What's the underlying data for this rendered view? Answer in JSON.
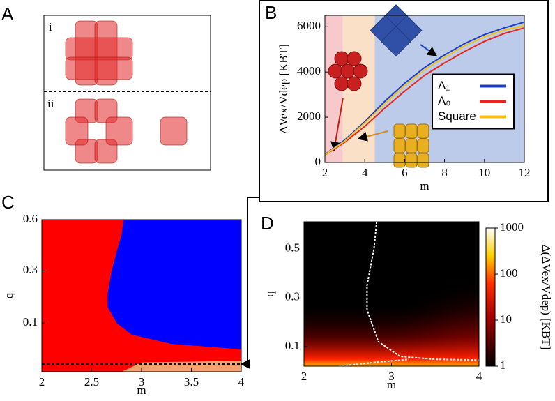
{
  "diagram_a": {
    "label": "A",
    "rows": [
      "i",
      "ii"
    ]
  },
  "chart_data": [
    {
      "type": "line",
      "panel_label": "B",
      "xlabel": "m",
      "ylabel": "ΔVex/Vdep [KBT]",
      "x": [
        2,
        3,
        4,
        5,
        6,
        7,
        8,
        9,
        10,
        11,
        12
      ],
      "series": [
        {
          "name": "Λ₁",
          "color": "#1f3fc8",
          "values": [
            350,
            1000,
            1800,
            2700,
            3500,
            4200,
            4750,
            5250,
            5650,
            5950,
            6200
          ]
        },
        {
          "name": "Λ₀",
          "color": "#e8261c",
          "values": [
            330,
            900,
            1600,
            2400,
            3150,
            3850,
            4400,
            4900,
            5350,
            5700,
            5950
          ]
        },
        {
          "name": "Square",
          "color": "#f2c21a",
          "values": [
            340,
            950,
            1750,
            2600,
            3400,
            4100,
            4650,
            5150,
            5550,
            5850,
            6050
          ]
        }
      ],
      "regions": [
        {
          "x0": 2,
          "x1": 2.9,
          "color": "#f7c9cc"
        },
        {
          "x0": 2.9,
          "x1": 4.5,
          "color": "#fbe0c8"
        },
        {
          "x0": 4.5,
          "x1": 12,
          "color": "#bccbea"
        }
      ],
      "xlim": [
        2,
        12
      ],
      "ylim": [
        0,
        6500
      ],
      "xticks": [
        2,
        4,
        6,
        8,
        10,
        12
      ],
      "yticks": [
        0,
        2000,
        4000,
        6000
      ],
      "legend": "center right"
    },
    {
      "type": "phase",
      "panel_label": "C",
      "xlabel": "m",
      "ylabel": "q",
      "xlim": [
        2,
        4
      ],
      "ylim": [
        0.01,
        0.6
      ],
      "yscale": "sqrt",
      "xticks": [
        2,
        2.5,
        3,
        3.5,
        4
      ],
      "yticks": [
        0.1,
        0.3,
        0.6
      ],
      "background": "#ff0000",
      "regions": [
        {
          "color": "#0000ff",
          "m": [
            2.82,
            2.8,
            2.75,
            2.7,
            2.66,
            2.66,
            2.75,
            2.9,
            3.3,
            4
          ],
          "q": [
            0.6,
            0.5,
            0.4,
            0.3,
            0.2,
            0.15,
            0.1,
            0.07,
            0.05,
            0.04
          ]
        },
        {
          "color": "#f5a070",
          "m": [
            2.8,
            3.0,
            4
          ],
          "q": [
            0.01,
            0.02,
            0.022
          ]
        }
      ],
      "dashed_q": 0.018
    },
    {
      "type": "heatmap",
      "panel_label": "D",
      "xlabel": "m",
      "ylabel": "q",
      "xlim": [
        2,
        4
      ],
      "ylim": [
        0.02,
        0.61
      ],
      "xticks": [
        2,
        3,
        4
      ],
      "yticks": [
        0.1,
        0.3,
        0.5
      ],
      "boundaries": [
        {
          "m": [
            2.83,
            2.8,
            2.72,
            2.72,
            2.85,
            3.1,
            3.5,
            4
          ],
          "q": [
            0.61,
            0.5,
            0.35,
            0.25,
            0.12,
            0.06,
            0.048,
            0.045
          ]
        },
        {
          "m": [
            2.4,
            2.8,
            3.2
          ],
          "q": [
            0.02,
            0.035,
            0.048
          ]
        }
      ],
      "colorbar": {
        "scale": "log",
        "lim": [
          1,
          1000
        ],
        "ticks": [
          1,
          10,
          100,
          1000
        ],
        "label": "Δ(ΔVex/Vdep) [KBT]"
      }
    }
  ]
}
